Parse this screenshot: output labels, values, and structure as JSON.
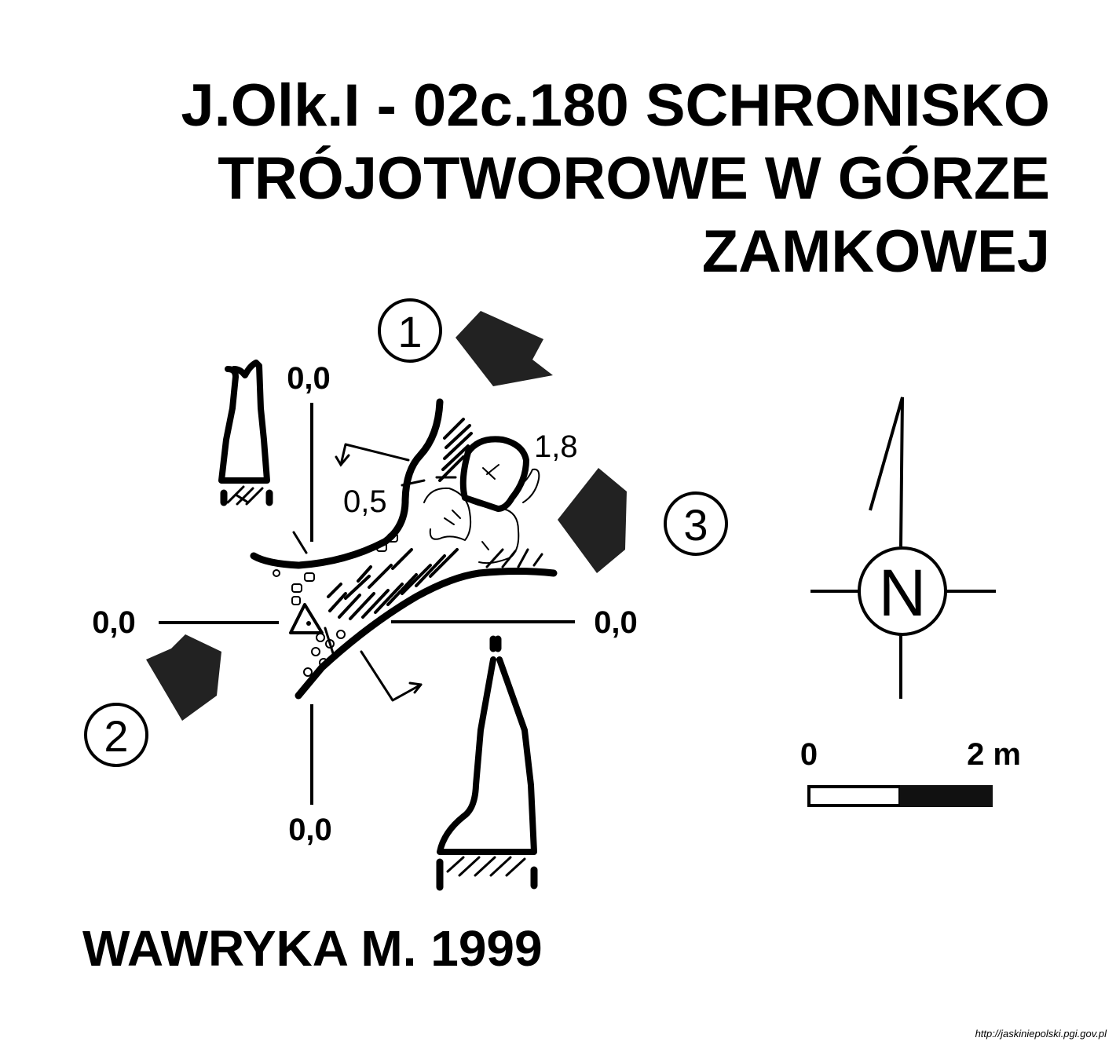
{
  "title": {
    "line1": "J.Olk.I - 02c.180  SCHRONISKO",
    "line2": "TRÓJOTWOROWE W GÓRZE",
    "line3": "ZAMKOWEJ"
  },
  "author": "WAWRYKA M. 1999",
  "source": "http://jaskiniepolski.pgi.gov.pl",
  "plan": {
    "axis_labels": {
      "top": "0,0",
      "left": "0,0",
      "right": "0,0",
      "bottom": "0,0"
    },
    "depths": {
      "inner": "1,8",
      "mid": "0,5"
    },
    "entrances": [
      "1",
      "2",
      "3"
    ]
  },
  "compass": {
    "north": "N"
  },
  "scale": {
    "start": "0",
    "end": "2 m"
  }
}
